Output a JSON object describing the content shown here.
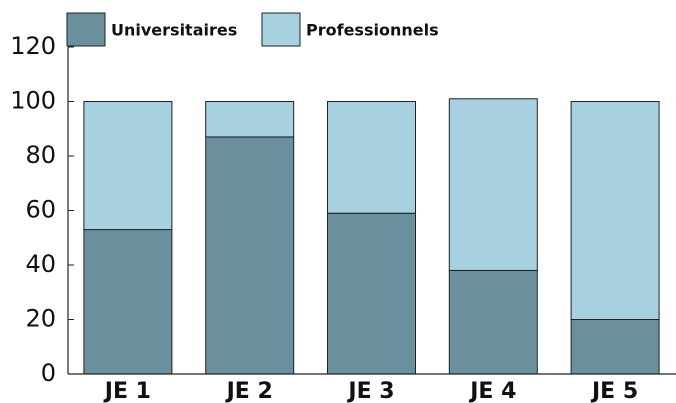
{
  "chart_data": {
    "type": "stacked_bar",
    "categories": [
      "JE 1",
      "JE 2",
      "JE 3",
      "JE 4",
      "JE 5"
    ],
    "series": [
      {
        "name": "Universitaires",
        "color": "#6a909d",
        "values": [
          53,
          87,
          59,
          38,
          20
        ]
      },
      {
        "name": "Professionnels",
        "color": "#a7d0e1",
        "values": [
          47,
          13,
          41,
          63,
          80
        ]
      }
    ],
    "ylim": [
      0,
      120
    ],
    "yticks": [
      0,
      20,
      40,
      60,
      80,
      100,
      120
    ],
    "grid": false,
    "legend": "top"
  }
}
